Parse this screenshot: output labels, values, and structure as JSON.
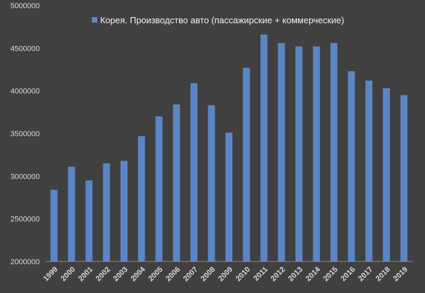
{
  "chart_data": {
    "type": "bar",
    "series": [
      {
        "name": "Корея. Производство авто (пассажирские + коммерческие)",
        "values": [
          2840000,
          3110000,
          2950000,
          3150000,
          3180000,
          3470000,
          3700000,
          3840000,
          4090000,
          3830000,
          3510000,
          4270000,
          4660000,
          4560000,
          4520000,
          4520000,
          4560000,
          4230000,
          4120000,
          4030000,
          3950000
        ]
      }
    ],
    "categories": [
      "1999",
      "2000",
      "2001",
      "2002",
      "2003",
      "2004",
      "2005",
      "2006",
      "2007",
      "2008",
      "2009",
      "2010",
      "2011",
      "2012",
      "2013",
      "2014",
      "2015",
      "2016",
      "2017",
      "2018",
      "2019"
    ],
    "ylim": [
      2000000,
      5000000
    ],
    "y_ticks": [
      "2000000",
      "2500000",
      "3000000",
      "3500000",
      "4000000",
      "4500000",
      "5000000"
    ],
    "grid": false,
    "legend_position": "top",
    "colors": {
      "bar": "#5b86c5",
      "background": "#404040",
      "axis": "#8c8c8c",
      "text": "#d9d9d9"
    }
  }
}
